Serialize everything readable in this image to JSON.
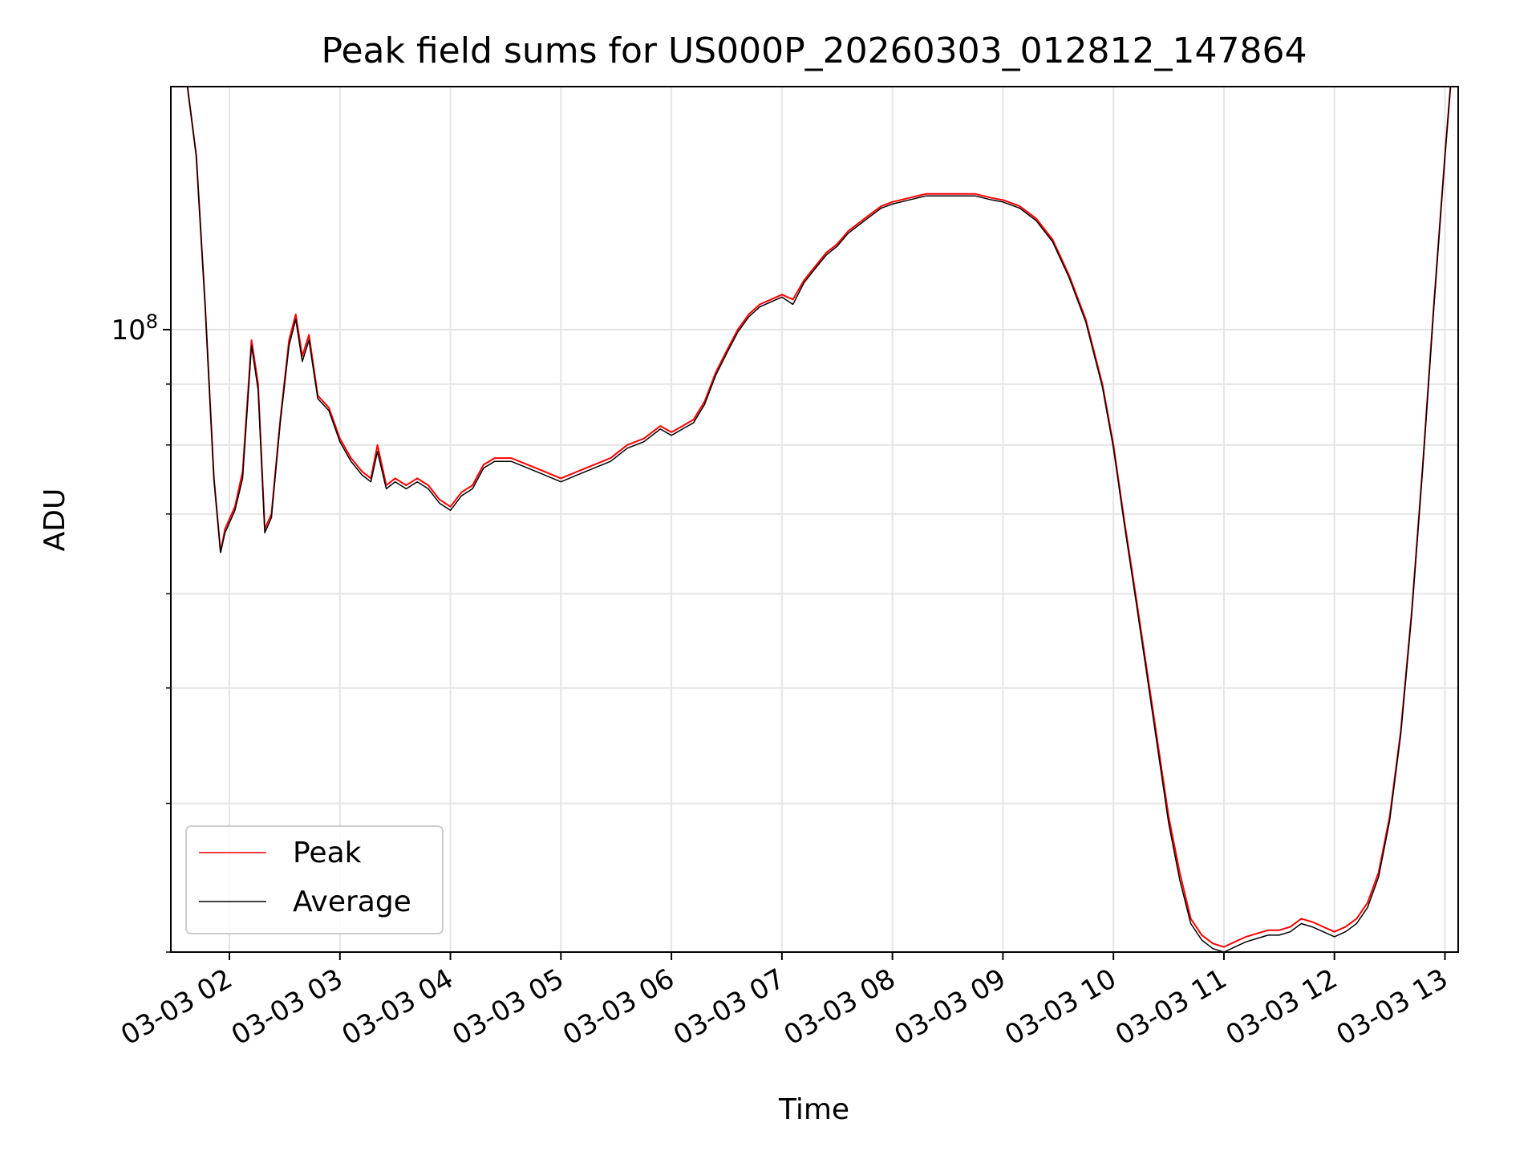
{
  "chart_data": {
    "type": "line",
    "title": "Peak field sums for US000P_20260303_012812_147864",
    "xlabel": "Time",
    "ylabel": "ADU",
    "yscale": "log",
    "grid": true,
    "legend_position": "lower-left",
    "xlim": [
      1.47,
      13.12
    ],
    "ylim": [
      30000000,
      160000000
    ],
    "x_ticks": [
      "03-03 02",
      "03-03 03",
      "03-03 04",
      "03-03 05",
      "03-03 06",
      "03-03 07",
      "03-03 08",
      "03-03 09",
      "03-03 10",
      "03-03 11",
      "03-03 12",
      "03-03 13"
    ],
    "y_ticks": [
      {
        "value": 100000000,
        "base": "10",
        "exp": "8"
      }
    ],
    "x_unit_note": "x values are hours of 2026-03-03",
    "series": [
      {
        "name": "Peak",
        "color": "#ff0000",
        "points": [
          [
            1.47,
            160000000
          ],
          [
            1.62,
            160000000
          ],
          [
            1.7,
            140000000
          ],
          [
            1.78,
            105000000
          ],
          [
            1.86,
            75000000
          ],
          [
            1.92,
            65000000
          ],
          [
            1.96,
            68000000
          ],
          [
            2.05,
            71000000
          ],
          [
            2.12,
            76000000
          ],
          [
            2.2,
            98000000
          ],
          [
            2.26,
            90000000
          ],
          [
            2.32,
            68000000
          ],
          [
            2.38,
            70000000
          ],
          [
            2.46,
            84000000
          ],
          [
            2.54,
            98000000
          ],
          [
            2.6,
            103000000
          ],
          [
            2.66,
            95000000
          ],
          [
            2.72,
            99000000
          ],
          [
            2.8,
            88000000
          ],
          [
            2.9,
            86000000
          ],
          [
            3.0,
            81000000
          ],
          [
            3.1,
            78000000
          ],
          [
            3.2,
            76000000
          ],
          [
            3.28,
            75000000
          ],
          [
            3.34,
            80000000
          ],
          [
            3.42,
            74000000
          ],
          [
            3.5,
            75000000
          ],
          [
            3.6,
            74000000
          ],
          [
            3.7,
            75000000
          ],
          [
            3.8,
            74000000
          ],
          [
            3.9,
            72000000
          ],
          [
            4.0,
            71000000
          ],
          [
            4.1,
            73000000
          ],
          [
            4.2,
            74000000
          ],
          [
            4.3,
            77000000
          ],
          [
            4.4,
            78000000
          ],
          [
            4.55,
            78000000
          ],
          [
            4.7,
            77000000
          ],
          [
            4.85,
            76000000
          ],
          [
            5.0,
            75000000
          ],
          [
            5.15,
            76000000
          ],
          [
            5.3,
            77000000
          ],
          [
            5.45,
            78000000
          ],
          [
            5.6,
            80000000
          ],
          [
            5.75,
            81000000
          ],
          [
            5.9,
            83000000
          ],
          [
            6.0,
            82000000
          ],
          [
            6.1,
            83000000
          ],
          [
            6.2,
            84000000
          ],
          [
            6.3,
            87000000
          ],
          [
            6.4,
            92000000
          ],
          [
            6.5,
            96000000
          ],
          [
            6.6,
            100000000
          ],
          [
            6.7,
            103000000
          ],
          [
            6.8,
            105000000
          ],
          [
            6.9,
            106000000
          ],
          [
            7.0,
            107000000
          ],
          [
            7.1,
            106000000
          ],
          [
            7.2,
            110000000
          ],
          [
            7.3,
            113000000
          ],
          [
            7.4,
            116000000
          ],
          [
            7.5,
            118000000
          ],
          [
            7.6,
            121000000
          ],
          [
            7.7,
            123000000
          ],
          [
            7.8,
            125000000
          ],
          [
            7.9,
            127000000
          ],
          [
            8.0,
            128000000
          ],
          [
            8.15,
            129000000
          ],
          [
            8.3,
            130000000
          ],
          [
            8.45,
            130000000
          ],
          [
            8.6,
            130000000
          ],
          [
            8.75,
            130000000
          ],
          [
            8.9,
            129000000
          ],
          [
            9.0,
            128500000
          ],
          [
            9.15,
            127000000
          ],
          [
            9.3,
            124000000
          ],
          [
            9.45,
            119000000
          ],
          [
            9.6,
            111000000
          ],
          [
            9.75,
            102000000
          ],
          [
            9.9,
            90000000
          ],
          [
            10.0,
            80000000
          ],
          [
            10.1,
            69000000
          ],
          [
            10.2,
            60000000
          ],
          [
            10.3,
            52000000
          ],
          [
            10.4,
            45000000
          ],
          [
            10.5,
            39000000
          ],
          [
            10.6,
            35000000
          ],
          [
            10.7,
            32000000
          ],
          [
            10.8,
            31000000
          ],
          [
            10.9,
            30500000
          ],
          [
            11.0,
            30300000
          ],
          [
            11.1,
            30600000
          ],
          [
            11.2,
            30900000
          ],
          [
            11.3,
            31100000
          ],
          [
            11.4,
            31300000
          ],
          [
            11.5,
            31300000
          ],
          [
            11.6,
            31500000
          ],
          [
            11.7,
            32000000
          ],
          [
            11.8,
            31800000
          ],
          [
            11.9,
            31500000
          ],
          [
            12.0,
            31200000
          ],
          [
            12.1,
            31500000
          ],
          [
            12.2,
            32000000
          ],
          [
            12.3,
            33000000
          ],
          [
            12.4,
            35000000
          ],
          [
            12.5,
            39000000
          ],
          [
            12.6,
            46000000
          ],
          [
            12.7,
            58000000
          ],
          [
            12.8,
            77000000
          ],
          [
            12.9,
            105000000
          ],
          [
            13.0,
            140000000
          ],
          [
            13.05,
            160000000
          ],
          [
            13.12,
            160000000
          ]
        ]
      },
      {
        "name": "Average",
        "color": "#000000",
        "points": [
          [
            1.47,
            160000000
          ],
          [
            1.62,
            160000000
          ],
          [
            1.7,
            140000000
          ],
          [
            1.78,
            105000000
          ],
          [
            1.86,
            75000000
          ],
          [
            1.92,
            65000000
          ],
          [
            1.96,
            67500000
          ],
          [
            2.05,
            70500000
          ],
          [
            2.12,
            75000000
          ],
          [
            2.2,
            97000000
          ],
          [
            2.26,
            89000000
          ],
          [
            2.32,
            67500000
          ],
          [
            2.38,
            69500000
          ],
          [
            2.46,
            83500000
          ],
          [
            2.54,
            97000000
          ],
          [
            2.6,
            102000000
          ],
          [
            2.66,
            94000000
          ],
          [
            2.72,
            98000000
          ],
          [
            2.8,
            87500000
          ],
          [
            2.9,
            85500000
          ],
          [
            3.0,
            80500000
          ],
          [
            3.1,
            77500000
          ],
          [
            3.2,
            75500000
          ],
          [
            3.28,
            74500000
          ],
          [
            3.34,
            79000000
          ],
          [
            3.42,
            73500000
          ],
          [
            3.5,
            74500000
          ],
          [
            3.6,
            73500000
          ],
          [
            3.7,
            74500000
          ],
          [
            3.8,
            73500000
          ],
          [
            3.9,
            71500000
          ],
          [
            4.0,
            70500000
          ],
          [
            4.1,
            72500000
          ],
          [
            4.2,
            73500000
          ],
          [
            4.3,
            76500000
          ],
          [
            4.4,
            77500000
          ],
          [
            4.55,
            77500000
          ],
          [
            4.7,
            76500000
          ],
          [
            4.85,
            75500000
          ],
          [
            5.0,
            74500000
          ],
          [
            5.15,
            75500000
          ],
          [
            5.3,
            76500000
          ],
          [
            5.45,
            77500000
          ],
          [
            5.6,
            79500000
          ],
          [
            5.75,
            80500000
          ],
          [
            5.9,
            82500000
          ],
          [
            6.0,
            81500000
          ],
          [
            6.1,
            82500000
          ],
          [
            6.2,
            83500000
          ],
          [
            6.3,
            86500000
          ],
          [
            6.4,
            91500000
          ],
          [
            6.5,
            95500000
          ],
          [
            6.6,
            99500000
          ],
          [
            6.7,
            102500000
          ],
          [
            6.8,
            104500000
          ],
          [
            6.9,
            105500000
          ],
          [
            7.0,
            106500000
          ],
          [
            7.1,
            105000000
          ],
          [
            7.2,
            109500000
          ],
          [
            7.3,
            112500000
          ],
          [
            7.4,
            115500000
          ],
          [
            7.5,
            117500000
          ],
          [
            7.6,
            120500000
          ],
          [
            7.7,
            122500000
          ],
          [
            7.8,
            124500000
          ],
          [
            7.9,
            126500000
          ],
          [
            8.0,
            127500000
          ],
          [
            8.15,
            128500000
          ],
          [
            8.3,
            129500000
          ],
          [
            8.45,
            129500000
          ],
          [
            8.6,
            129500000
          ],
          [
            8.75,
            129500000
          ],
          [
            8.9,
            128500000
          ],
          [
            9.0,
            128000000
          ],
          [
            9.15,
            126500000
          ],
          [
            9.3,
            123500000
          ],
          [
            9.45,
            118500000
          ],
          [
            9.6,
            110500000
          ],
          [
            9.75,
            101500000
          ],
          [
            9.9,
            89500000
          ],
          [
            10.0,
            79500000
          ],
          [
            10.1,
            68500000
          ],
          [
            10.2,
            59500000
          ],
          [
            10.3,
            51500000
          ],
          [
            10.4,
            44500000
          ],
          [
            10.5,
            38500000
          ],
          [
            10.6,
            34500000
          ],
          [
            10.7,
            31700000
          ],
          [
            10.8,
            30700000
          ],
          [
            10.9,
            30200000
          ],
          [
            11.0,
            30000000
          ],
          [
            11.1,
            30300000
          ],
          [
            11.2,
            30600000
          ],
          [
            11.3,
            30800000
          ],
          [
            11.4,
            31000000
          ],
          [
            11.5,
            31000000
          ],
          [
            11.6,
            31200000
          ],
          [
            11.7,
            31700000
          ],
          [
            11.8,
            31500000
          ],
          [
            11.9,
            31200000
          ],
          [
            12.0,
            30900000
          ],
          [
            12.1,
            31200000
          ],
          [
            12.2,
            31700000
          ],
          [
            12.3,
            32700000
          ],
          [
            12.4,
            34700000
          ],
          [
            12.5,
            38700000
          ],
          [
            12.6,
            45700000
          ],
          [
            12.7,
            57700000
          ],
          [
            12.8,
            76700000
          ],
          [
            12.9,
            104500000
          ],
          [
            13.0,
            140000000
          ],
          [
            13.05,
            160000000
          ],
          [
            13.12,
            160000000
          ]
        ]
      }
    ],
    "legend": [
      {
        "label": "Peak",
        "color": "#ff0000"
      },
      {
        "label": "Average",
        "color": "#000000"
      }
    ]
  }
}
